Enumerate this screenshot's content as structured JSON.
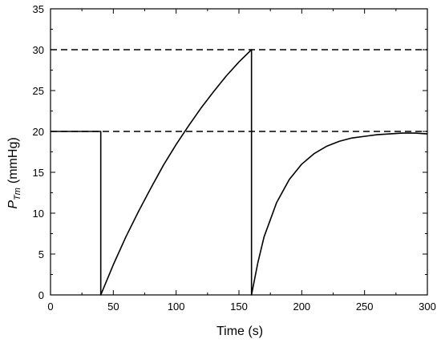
{
  "chart_data": {
    "type": "line",
    "title": "",
    "xlabel": "Time (s)",
    "ylabel": {
      "symbol": "P",
      "subscript": "Tm",
      "unit": "(mmHg)"
    },
    "xlim": [
      0,
      300
    ],
    "ylim": [
      0,
      35
    ],
    "xticks": [
      "0",
      "50",
      "100",
      "150",
      "200",
      "250",
      "300"
    ],
    "yticks": [
      "0",
      "5",
      "10",
      "15",
      "20",
      "25",
      "30",
      "35"
    ],
    "grid": false,
    "legend": "none",
    "reference_lines": [
      {
        "y": 30,
        "x_start": 0,
        "x_end": 300,
        "style": "dashed"
      },
      {
        "y": 20,
        "x_start": 0,
        "x_end": 300,
        "style": "dashed"
      }
    ],
    "series": [
      {
        "color": "#000000",
        "x": [
          0,
          40,
          40,
          50,
          60,
          70,
          80,
          90,
          100,
          110,
          120,
          130,
          140,
          150,
          160,
          160,
          165,
          170,
          180,
          190,
          200,
          210,
          220,
          230,
          240,
          250,
          260,
          270,
          280,
          290,
          300
        ],
        "y": [
          20,
          20,
          0,
          3.7,
          7.1,
          10.2,
          13.1,
          15.9,
          18.4,
          20.7,
          22.9,
          24.9,
          26.8,
          28.5,
          30,
          0,
          3.9,
          7.1,
          11.3,
          14.1,
          16.0,
          17.3,
          18.2,
          18.8,
          19.2,
          19.4,
          19.6,
          19.7,
          19.8,
          19.8,
          19.7
        ]
      }
    ]
  }
}
